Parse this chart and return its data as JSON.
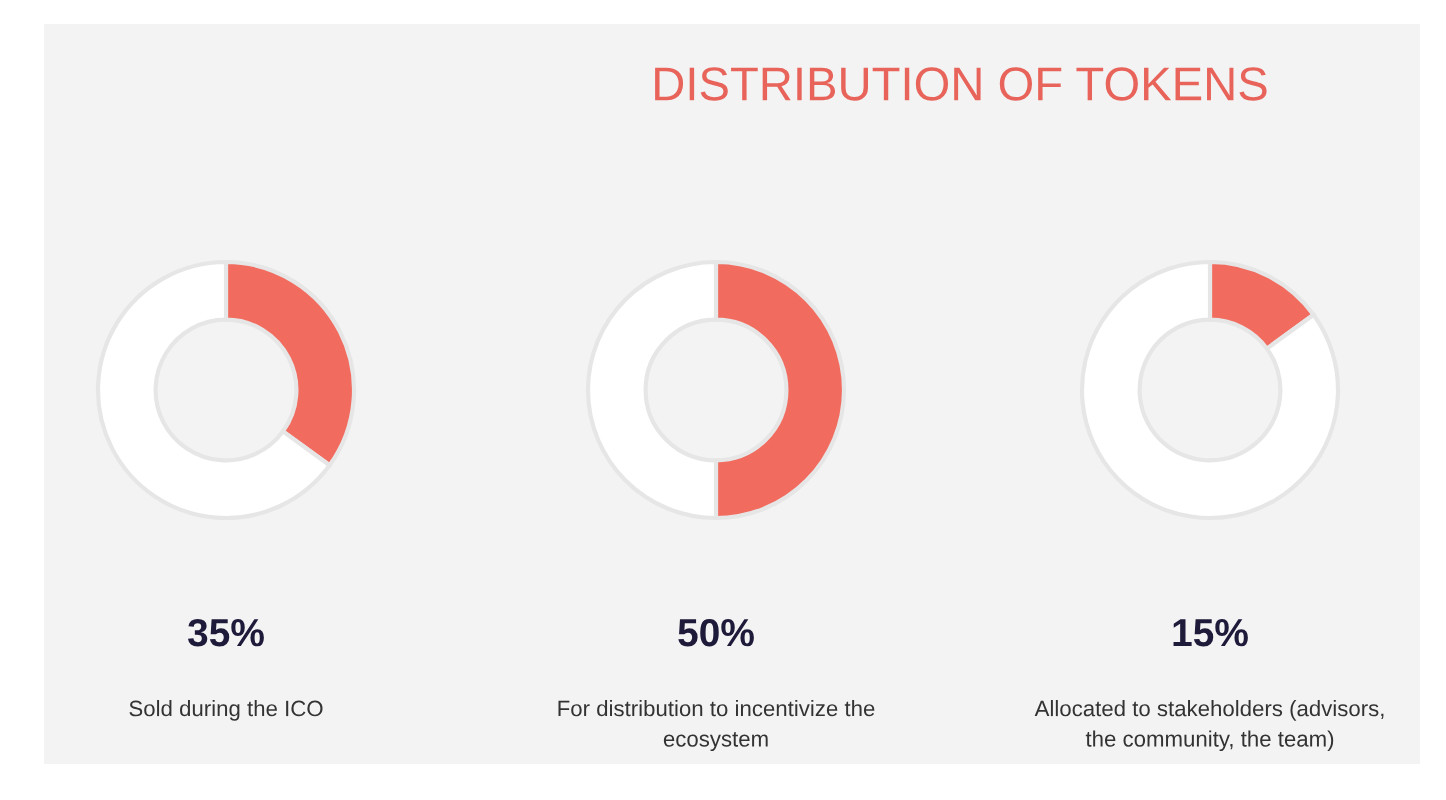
{
  "chart_data": [
    {
      "type": "donut",
      "title": "DISTRIBUTION OF TOKENS",
      "categories": [
        null,
        null
      ],
      "values": [
        35,
        65
      ],
      "colors": [
        "#f26b5f",
        "#ffffff"
      ],
      "annotations": [
        "35%",
        "Sold during the ICO"
      ]
    },
    {
      "type": "donut",
      "categories": [
        null,
        null
      ],
      "values": [
        50,
        50
      ],
      "colors": [
        "#f26b5f",
        "#ffffff"
      ],
      "annotations": [
        "50%",
        "For distribution to incentivize the\necosystem"
      ]
    },
    {
      "type": "donut",
      "categories": [
        null,
        null
      ],
      "values": [
        15,
        85
      ],
      "colors": [
        "#f26b5f",
        "#ffffff"
      ],
      "annotations": [
        "15%",
        "Allocated to stakeholders (advisors,\nthe community, the team)"
      ]
    }
  ]
}
